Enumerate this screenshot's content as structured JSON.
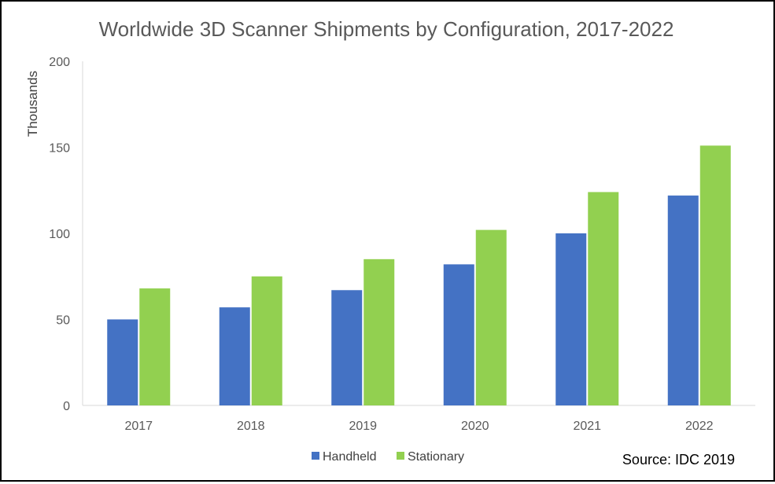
{
  "chart_data": {
    "type": "bar",
    "title": "Worldwide 3D Scanner Shipments by Configuration, 2017-2022",
    "xlabel": "",
    "ylabel": "Thousands",
    "ylim": [
      0,
      200
    ],
    "yticks": [
      0,
      50,
      100,
      150,
      200
    ],
    "categories": [
      "2017",
      "2018",
      "2019",
      "2020",
      "2021",
      "2022"
    ],
    "series": [
      {
        "name": "Handheld",
        "color": "#4472C4",
        "values": [
          50,
          57,
          67,
          82,
          100,
          122
        ]
      },
      {
        "name": "Stationary",
        "color": "#92D050",
        "values": [
          68,
          75,
          85,
          102,
          124,
          151
        ]
      }
    ],
    "legend_position": "bottom",
    "grid": false,
    "source": "Source: IDC 2019"
  }
}
